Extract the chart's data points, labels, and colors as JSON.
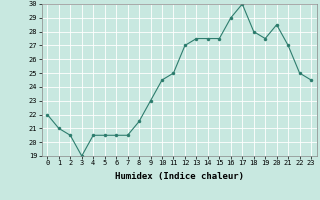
{
  "x": [
    0,
    1,
    2,
    3,
    4,
    5,
    6,
    7,
    8,
    9,
    10,
    11,
    12,
    13,
    14,
    15,
    16,
    17,
    18,
    19,
    20,
    21,
    22,
    23
  ],
  "y": [
    22,
    21,
    20.5,
    19,
    20.5,
    20.5,
    20.5,
    20.5,
    21.5,
    23,
    24.5,
    25,
    27,
    27.5,
    27.5,
    27.5,
    29,
    30,
    28,
    27.5,
    28.5,
    27,
    25,
    24.5
  ],
  "line_color": "#2e7d6e",
  "marker": ".",
  "marker_size": 3,
  "bg_color": "#c8e8e0",
  "grid_color": "#ffffff",
  "xlabel": "Humidex (Indice chaleur)",
  "ylim": [
    19,
    30
  ],
  "xlim": [
    -0.5,
    23.5
  ],
  "yticks": [
    19,
    20,
    21,
    22,
    23,
    24,
    25,
    26,
    27,
    28,
    29,
    30
  ],
  "xticks": [
    0,
    1,
    2,
    3,
    4,
    5,
    6,
    7,
    8,
    9,
    10,
    11,
    12,
    13,
    14,
    15,
    16,
    17,
    18,
    19,
    20,
    21,
    22,
    23
  ],
  "tick_fontsize": 5,
  "xlabel_fontsize": 6.5,
  "label_color": "#000000",
  "line_width": 0.8
}
